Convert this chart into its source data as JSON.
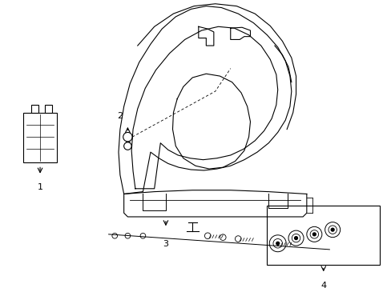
{
  "background_color": "#ffffff",
  "line_color": "#000000",
  "fig_width": 4.89,
  "fig_height": 3.6,
  "dpi": 100,
  "lw": 0.8
}
